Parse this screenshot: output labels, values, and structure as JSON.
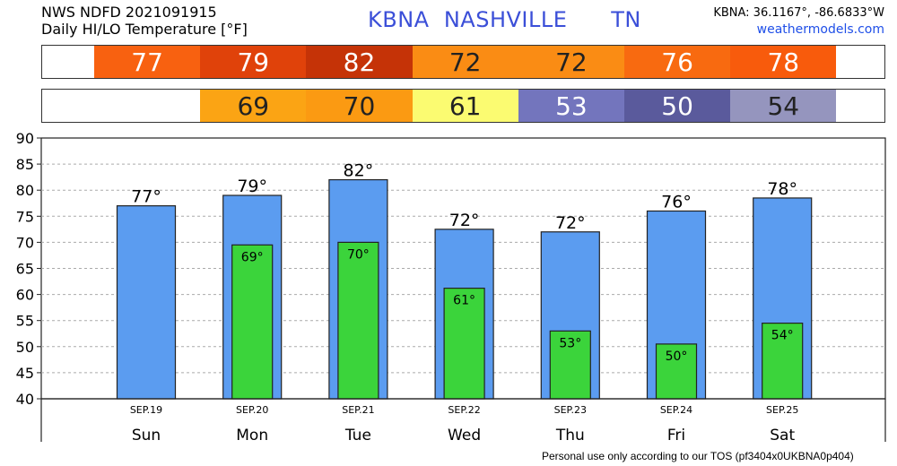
{
  "header": {
    "line1": "NWS NDFD 2021091915",
    "line2": "Daily HI/LO Temperature [°F]",
    "station": "KBNA",
    "city": "NASHVILLE",
    "state": "TN",
    "coords": "KBNA: 36.1167°, -86.6833°W",
    "site": "weathermodels.com"
  },
  "strips": {
    "hi": [
      {
        "label": "77",
        "color": "#f86110"
      },
      {
        "label": "79",
        "color": "#e0420a"
      },
      {
        "label": "82",
        "color": "#c53307"
      },
      {
        "label": "72",
        "color": "#fa8c14"
      },
      {
        "label": "72",
        "color": "#fa8c14"
      },
      {
        "label": "76",
        "color": "#f86a10"
      },
      {
        "label": "78",
        "color": "#f85b0c"
      }
    ],
    "lo": [
      {
        "label": "69",
        "color": "#fba414"
      },
      {
        "label": "70",
        "color": "#fb9a12"
      },
      {
        "label": "61",
        "color": "#fbfb71"
      },
      {
        "label": "53",
        "color": "#7375bd"
      },
      {
        "label": "50",
        "color": "#5a5a9c"
      },
      {
        "label": "54",
        "color": "#9595be"
      }
    ]
  },
  "chart_data": {
    "type": "bar",
    "title": "Daily HI/LO Temperature [°F]",
    "ylim": [
      40,
      90
    ],
    "yticks": [
      "90",
      "85",
      "80",
      "75",
      "70",
      "65",
      "60",
      "55",
      "50",
      "45",
      "40"
    ],
    "categories": [
      "SEP.19",
      "SEP.20",
      "SEP.21",
      "SEP.22",
      "SEP.23",
      "SEP.24",
      "SEP.25"
    ],
    "days": [
      "Sun",
      "Mon",
      "Tue",
      "Wed",
      "Thu",
      "Fri",
      "Sat"
    ],
    "series": [
      {
        "values": [
          77,
          79,
          82,
          72.5,
          72,
          76,
          78.5
        ],
        "labels": [
          "77°",
          "79°",
          "82°",
          "72°",
          "72°",
          "76°",
          "78°"
        ],
        "color": "#5b9cf0"
      },
      {
        "values": [
          null,
          69.5,
          70,
          61.2,
          53,
          50.5,
          54.5
        ],
        "labels": [
          "",
          "69°",
          "70°",
          "61°",
          "53°",
          "50°",
          "54°"
        ],
        "color": "#3bd43b"
      }
    ],
    "grid": true
  },
  "footer": "Personal use only according to our TOS (pf3404x0UKBNA0p404)"
}
